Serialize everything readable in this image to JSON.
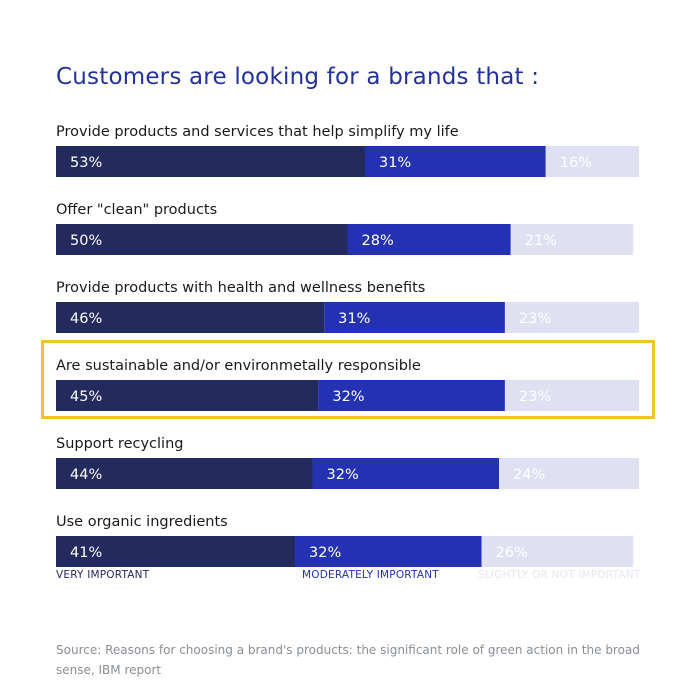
{
  "title": "Customers are looking for a brands that :",
  "colors": {
    "title": "#233199",
    "very_important": "#232a5e",
    "moderately_important": "#2431b3",
    "slightly_or_not_important": "#dfe0f2",
    "highlight_border": "#f2c12e"
  },
  "chart_data": {
    "type": "bar",
    "stacked": true,
    "orientation": "horizontal",
    "value_format": "percent",
    "categories": [
      "Provide products and services that help simplify my life",
      "Offer \"clean\" products",
      "Provide products with health and wellness benefits",
      "Are sustainable and/or environmetally responsible",
      "Support recycling",
      "Use organic ingredients"
    ],
    "series": [
      {
        "name": "VERY IMPORTANT",
        "values": [
          53,
          50,
          46,
          45,
          44,
          41
        ]
      },
      {
        "name": "MODERATELY IMPORTANT",
        "values": [
          31,
          28,
          31,
          32,
          32,
          32
        ]
      },
      {
        "name": "SLIGHTLY OR NOT IMPORTANT",
        "values": [
          16,
          21,
          23,
          23,
          24,
          26
        ]
      }
    ],
    "highlighted_category": "Are sustainable and/or environmetally responsible",
    "legend_position": "bottom",
    "xlim": [
      0,
      100
    ],
    "grid": false
  },
  "legend": [
    {
      "label": "VERY IMPORTANT",
      "color": "#232a5e"
    },
    {
      "label": "MODERATELY IMPORTANT",
      "color": "#2431b3"
    },
    {
      "label": "SLIGHTLY OR NOT IMPORTANT",
      "color": "#e4e6f0"
    }
  ],
  "source": "Source: Reasons for choosing a brand's products: the significant role of green action in the broad sense, IBM report"
}
